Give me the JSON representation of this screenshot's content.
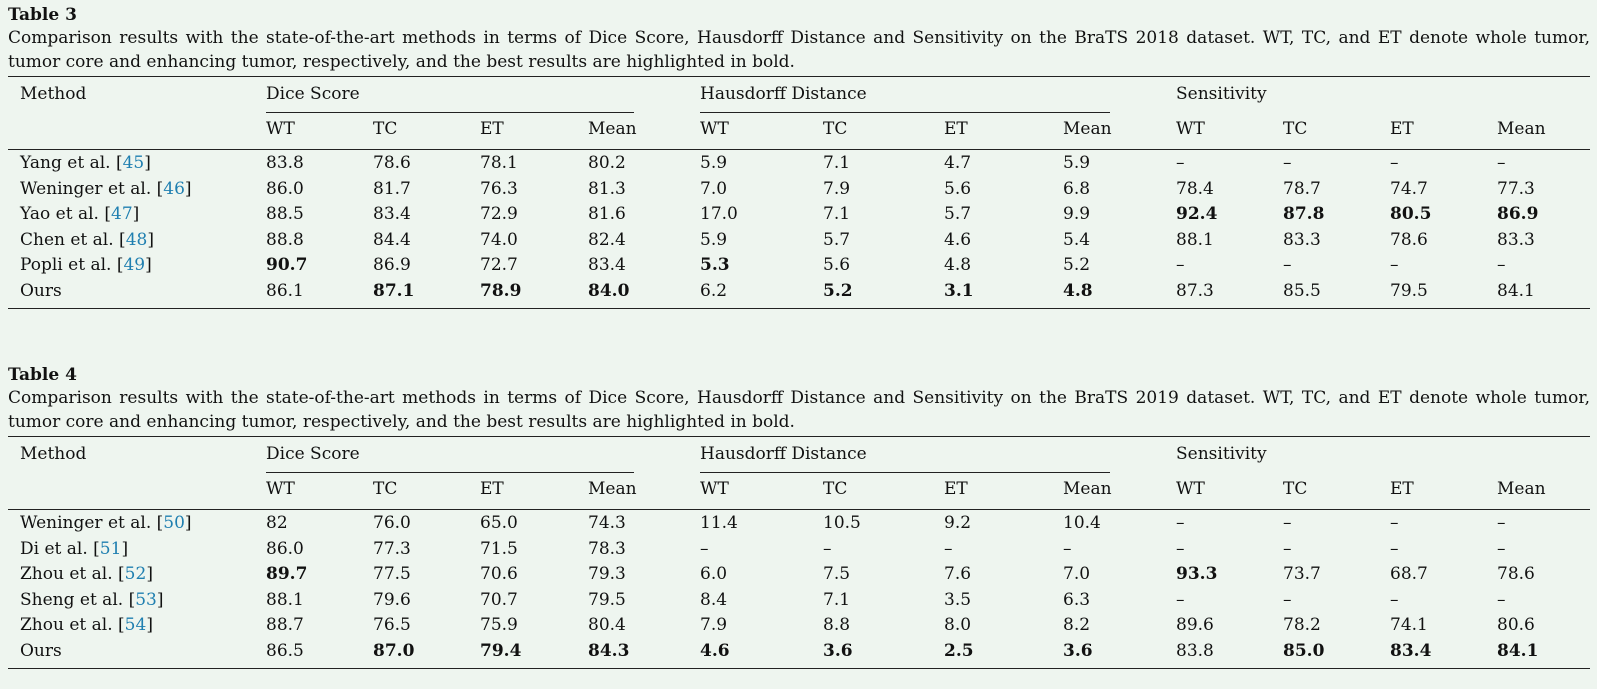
{
  "tables": [
    {
      "title": "Table 3",
      "caption": "Comparison results with the state-of-the-art methods in terms of Dice Score, Hausdorff Distance and Sensitivity on the BraTS 2018 dataset. WT, TC, and ET denote whole tumor, tumor core and enhancing tumor, respectively, and the best results are highlighted in bold.",
      "method_header": "Method",
      "groups": [
        "Dice Score",
        "Hausdorff Distance",
        "Sensitivity"
      ],
      "subheaders": [
        "WT",
        "TC",
        "ET",
        "Mean"
      ],
      "rows": [
        {
          "method": "Yang et al.",
          "ref": "45",
          "values": [
            "83.8",
            "78.6",
            "78.1",
            "80.2",
            "5.9",
            "7.1",
            "4.7",
            "5.9",
            "–",
            "–",
            "–",
            "–"
          ],
          "bold": []
        },
        {
          "method": "Weninger et al.",
          "ref": "46",
          "values": [
            "86.0",
            "81.7",
            "76.3",
            "81.3",
            "7.0",
            "7.9",
            "5.6",
            "6.8",
            "78.4",
            "78.7",
            "74.7",
            "77.3"
          ],
          "bold": []
        },
        {
          "method": "Yao et al.",
          "ref": "47",
          "values": [
            "88.5",
            "83.4",
            "72.9",
            "81.6",
            "17.0",
            "7.1",
            "5.7",
            "9.9",
            "92.4",
            "87.8",
            "80.5",
            "86.9"
          ],
          "bold": [
            8,
            9,
            10,
            11
          ]
        },
        {
          "method": "Chen et al.",
          "ref": "48",
          "values": [
            "88.8",
            "84.4",
            "74.0",
            "82.4",
            "5.9",
            "5.7",
            "4.6",
            "5.4",
            "88.1",
            "83.3",
            "78.6",
            "83.3"
          ],
          "bold": []
        },
        {
          "method": "Popli et al.",
          "ref": "49",
          "values": [
            "90.7",
            "86.9",
            "72.7",
            "83.4",
            "5.3",
            "5.6",
            "4.8",
            "5.2",
            "–",
            "–",
            "–",
            "–"
          ],
          "bold": [
            0,
            4
          ]
        },
        {
          "method": "Ours",
          "ref": "",
          "values": [
            "86.1",
            "87.1",
            "78.9",
            "84.0",
            "6.2",
            "5.2",
            "3.1",
            "4.8",
            "87.3",
            "85.5",
            "79.5",
            "84.1"
          ],
          "bold": [
            1,
            2,
            3,
            5,
            6,
            7
          ]
        }
      ]
    },
    {
      "title": "Table 4",
      "caption": "Comparison results with the state-of-the-art methods in terms of Dice Score, Hausdorff Distance and Sensitivity on the BraTS 2019 dataset. WT, TC, and ET denote whole tumor, tumor core and enhancing tumor, respectively, and the best results are highlighted in bold.",
      "method_header": "Method",
      "groups": [
        "Dice Score",
        "Hausdorff Distance",
        "Sensitivity"
      ],
      "subheaders": [
        "WT",
        "TC",
        "ET",
        "Mean"
      ],
      "rows": [
        {
          "method": "Weninger et al.",
          "ref": "50",
          "values": [
            "82",
            "76.0",
            "65.0",
            "74.3",
            "11.4",
            "10.5",
            "9.2",
            "10.4",
            "–",
            "–",
            "–",
            "–"
          ],
          "bold": []
        },
        {
          "method": "Di et al.",
          "ref": "51",
          "values": [
            "86.0",
            "77.3",
            "71.5",
            "78.3",
            "–",
            "–",
            "–",
            "–",
            "–",
            "–",
            "–",
            "–"
          ],
          "bold": []
        },
        {
          "method": "Zhou et al.",
          "ref": "52",
          "values": [
            "89.7",
            "77.5",
            "70.6",
            "79.3",
            "6.0",
            "7.5",
            "7.6",
            "7.0",
            "93.3",
            "73.7",
            "68.7",
            "78.6"
          ],
          "bold": [
            0,
            8
          ]
        },
        {
          "method": "Sheng et al.",
          "ref": "53",
          "values": [
            "88.1",
            "79.6",
            "70.7",
            "79.5",
            "8.4",
            "7.1",
            "3.5",
            "6.3",
            "–",
            "–",
            "–",
            "–"
          ],
          "bold": []
        },
        {
          "method": "Zhou et al.",
          "ref": "54",
          "values": [
            "88.7",
            "76.5",
            "75.9",
            "80.4",
            "7.9",
            "8.8",
            "8.0",
            "8.2",
            "89.6",
            "78.2",
            "74.1",
            "80.6"
          ],
          "bold": []
        },
        {
          "method": "Ours",
          "ref": "",
          "values": [
            "86.5",
            "87.0",
            "79.4",
            "84.3",
            "4.6",
            "3.6",
            "2.5",
            "3.6",
            "83.8",
            "85.0",
            "83.4",
            "84.1"
          ],
          "bold": [
            1,
            2,
            3,
            4,
            5,
            6,
            7,
            9,
            10,
            11
          ]
        }
      ]
    }
  ]
}
